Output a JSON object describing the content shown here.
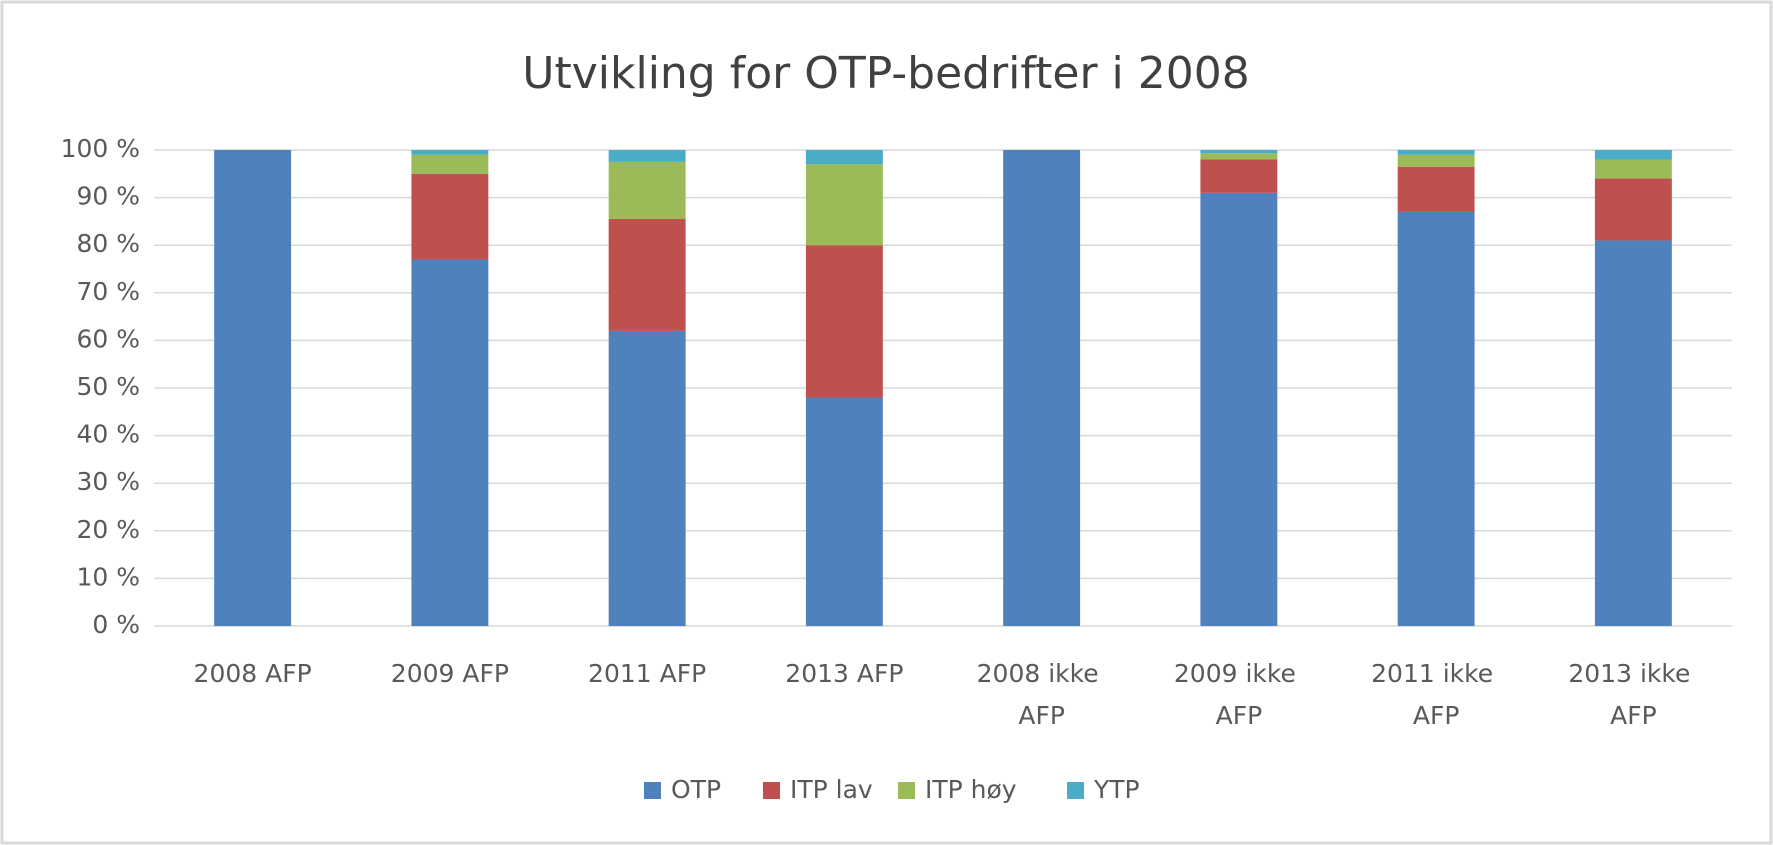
{
  "chart_data": {
    "type": "stacked_bar",
    "title": "Utvikling for OTP-bedrifter i 2008",
    "categories": [
      "2008 AFP",
      "2009 AFP",
      "2011 AFP",
      "2013 AFP",
      "2008 ikke AFP",
      "2009 ikke AFP",
      "2011 ikke AFP",
      "2013 ikke AFP"
    ],
    "series": [
      {
        "name": "OTP",
        "color": "#4f81bd",
        "values": [
          100,
          77,
          62,
          48,
          100,
          91,
          87,
          81
        ]
      },
      {
        "name": "ITP lav",
        "color": "#c0504d",
        "values": [
          0,
          18,
          23.5,
          32,
          0,
          7,
          9.5,
          13
        ]
      },
      {
        "name": "ITP høy",
        "color": "#9bbb59",
        "values": [
          0,
          4,
          12,
          17,
          0,
          1.3,
          2.5,
          4
        ]
      },
      {
        "name": "YTP",
        "color": "#4bacc6",
        "values": [
          0,
          1,
          2.5,
          3,
          0,
          0.7,
          1,
          2
        ]
      }
    ],
    "ylim": [
      0,
      100
    ],
    "yticks": [
      {
        "value": 0,
        "label": "0 %"
      },
      {
        "value": 10,
        "label": "10 %"
      },
      {
        "value": 20,
        "label": "20 %"
      },
      {
        "value": 30,
        "label": "30 %"
      },
      {
        "value": 40,
        "label": "40 %"
      },
      {
        "value": 50,
        "label": "50 %"
      },
      {
        "value": 60,
        "label": "60 %"
      },
      {
        "value": 70,
        "label": "70 %"
      },
      {
        "value": 80,
        "label": "80 %"
      },
      {
        "value": 90,
        "label": "90 %"
      },
      {
        "value": 100,
        "label": "100 %"
      }
    ],
    "grid": true,
    "legend": "bottom"
  }
}
